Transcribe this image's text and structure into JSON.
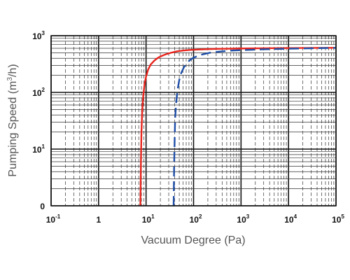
{
  "chart_data": {
    "type": "line",
    "xlabel": "Vacuum Degree (Pa)",
    "ylabel_main": "Pumping Speed (m",
    "ylabel_sup": "3",
    "ylabel_tail": "/h)",
    "x_scale": "log",
    "y_scale": "log",
    "xlim": [
      0.1,
      100000
    ],
    "ylim": [
      1,
      1000
    ],
    "grid": true,
    "x_ticks": [
      {
        "base": "10",
        "exp": "-1"
      },
      {
        "base": "1",
        "exp": ""
      },
      {
        "base": "10",
        "exp": "1"
      },
      {
        "base": "10",
        "exp": "2"
      },
      {
        "base": "10",
        "exp": "3"
      },
      {
        "base": "10",
        "exp": "4"
      },
      {
        "base": "10",
        "exp": "5"
      }
    ],
    "y_ticks": [
      {
        "base": "0",
        "exp": ""
      },
      {
        "base": "10",
        "exp": "1"
      },
      {
        "base": "10",
        "exp": "2"
      },
      {
        "base": "10",
        "exp": "3"
      }
    ],
    "series": [
      {
        "color": "#e8241c",
        "style": "solid",
        "x": [
          7.6,
          7.8,
          8,
          8.3,
          8.7,
          9.3,
          10,
          11,
          12.5,
          15,
          18,
          22,
          27,
          35,
          45,
          60,
          85,
          120,
          180,
          300,
          550,
          1000,
          3000,
          10000,
          40000,
          100000
        ],
        "y": [
          1,
          6,
          20,
          48,
          85,
          140,
          190,
          250,
          310,
          365,
          410,
          445,
          475,
          505,
          530,
          548,
          562,
          570,
          578,
          585,
          590,
          595,
          600,
          605,
          610,
          612
        ]
      },
      {
        "color": "#1f4fa8",
        "style": "dashed",
        "x": [
          38,
          39,
          40,
          41,
          43,
          46,
          50,
          55,
          63,
          75,
          90,
          115,
          150,
          220,
          350,
          600,
          1200,
          3000,
          10000,
          40000,
          100000
        ],
        "y": [
          1,
          5,
          15,
          35,
          65,
          110,
          165,
          220,
          280,
          340,
          390,
          430,
          465,
          500,
          525,
          545,
          560,
          575,
          590,
          602,
          610
        ]
      }
    ]
  }
}
